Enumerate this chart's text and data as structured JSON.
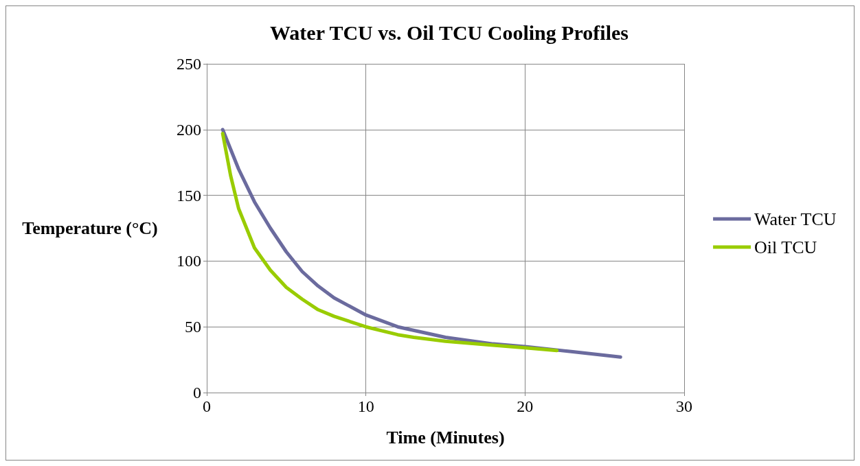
{
  "chart_data": {
    "type": "line",
    "title": "Water TCU vs. Oil TCU Cooling Profiles",
    "xlabel": "Time (Minutes)",
    "ylabel": "Temperature (°C)",
    "xlim": [
      0,
      30
    ],
    "xticks": [
      0,
      10,
      20,
      30
    ],
    "ylim": [
      0,
      250
    ],
    "yticks": [
      0,
      50,
      100,
      150,
      200,
      250
    ],
    "grid": true,
    "legend": "right",
    "marker": "none",
    "line_style": "solid",
    "series": [
      {
        "name": "Water TCU",
        "color": "#6b6b9e",
        "x": [
          1,
          2,
          3,
          4,
          5,
          6,
          7,
          8,
          10,
          12,
          15,
          18,
          20,
          23,
          26
        ],
        "values": [
          200,
          170,
          145,
          125,
          107,
          92,
          81,
          72,
          59,
          50,
          42,
          37,
          35,
          31,
          27
        ]
      },
      {
        "name": "Oil TCU",
        "color": "#99cc00",
        "x": [
          1,
          1.5,
          2,
          3,
          4,
          5,
          6,
          7,
          8,
          10,
          12,
          13,
          15,
          18,
          20,
          22
        ],
        "values": [
          197,
          165,
          140,
          110,
          93,
          80,
          71,
          63,
          58,
          50,
          44,
          42,
          39,
          36,
          34,
          32
        ]
      }
    ]
  }
}
